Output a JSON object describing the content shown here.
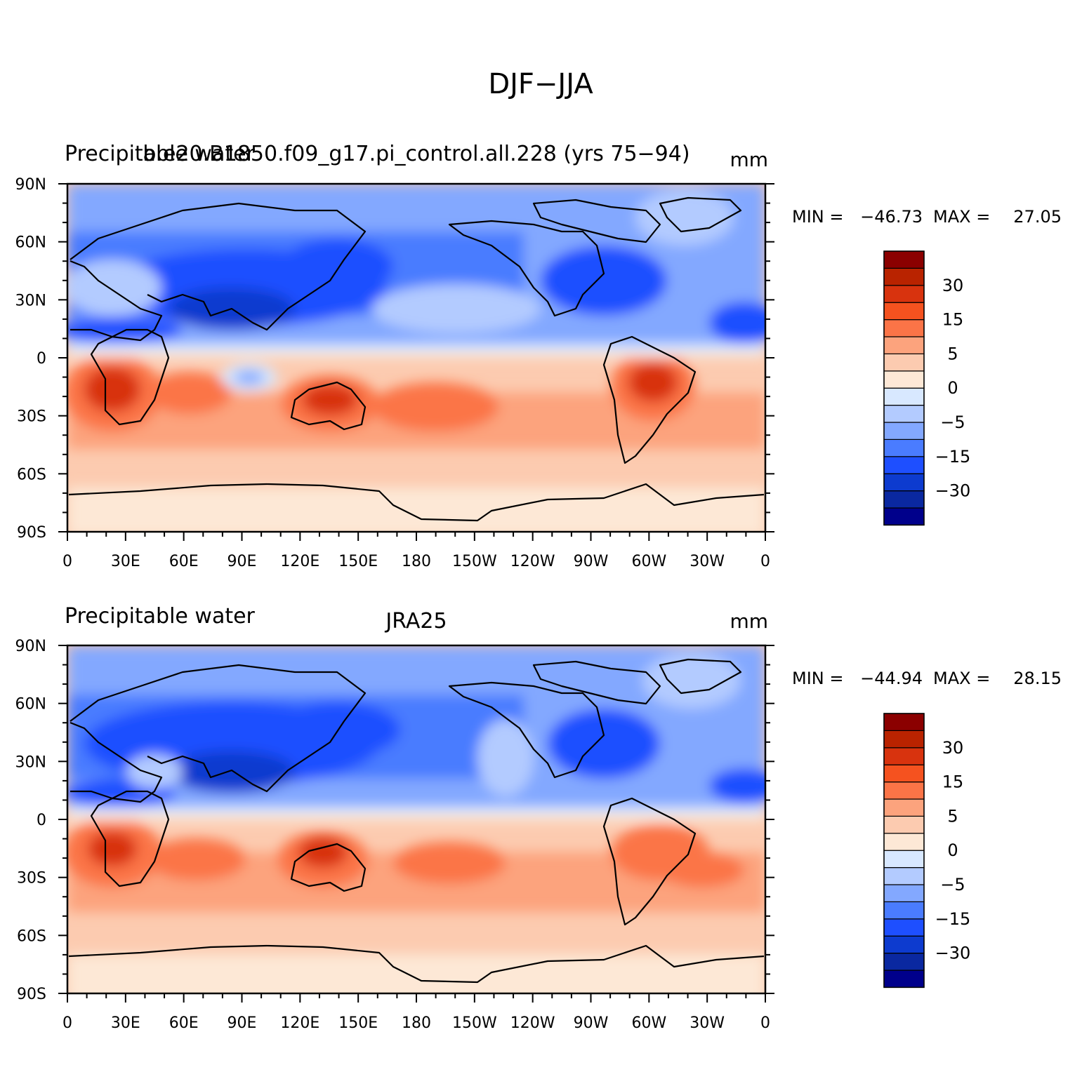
{
  "figure": {
    "title": "DJF−JJA"
  },
  "panels": [
    {
      "id": "top",
      "left_title": "Precipitable water",
      "center_title": "b.e20.B1850.f09_g17.pi_control.all.228 (yrs 75−94)",
      "units": "mm",
      "min_label": "MIN = ",
      "min_value": "−46.73",
      "max_label": "MAX = ",
      "max_value": "27.05"
    },
    {
      "id": "bottom",
      "left_title": "Precipitable water",
      "center_title": "JRA25",
      "units": "mm",
      "min_label": "MIN = ",
      "min_value": "−44.94",
      "max_label": "MAX = ",
      "max_value": "28.15"
    }
  ],
  "axes": {
    "lon_ticks": [
      "0",
      "30E",
      "60E",
      "90E",
      "120E",
      "150E",
      "180",
      "150W",
      "120W",
      "90W",
      "60W",
      "30W",
      "0"
    ],
    "lat_ticks": [
      "90N",
      "60N",
      "30N",
      "0",
      "30S",
      "60S",
      "90S"
    ]
  },
  "colorbar": {
    "colors": [
      "#00008b",
      "#0a28a0",
      "#0d3bcf",
      "#1e4fff",
      "#4a7cff",
      "#83a8ff",
      "#b3cbff",
      "#d8e8ff",
      "#fde8d6",
      "#fccbb0",
      "#fca37d",
      "#fb7447",
      "#f5521f",
      "#d8330e",
      "#b92300",
      "#8b0000"
    ],
    "labels": [
      "30",
      "15",
      "5",
      "0",
      "−5",
      "−15",
      "−30"
    ]
  },
  "chart_data": {
    "type": "heatmap",
    "title": "DJF−JJA",
    "variable": "Precipitable water",
    "units": "mm",
    "x_axis": "longitude 0 → 360 (0, 30E … 180 … 30W, 0)",
    "y_axis": "latitude 90S → 90N",
    "contour_levels": [
      -40,
      -35,
      -30,
      -25,
      -20,
      -15,
      -10,
      -5,
      0,
      5,
      10,
      15,
      20,
      25,
      30,
      35
    ],
    "panels": [
      {
        "name": "b.e20.B1850.f09_g17.pi_control.all.228 (yrs 75−94)",
        "min": -46.73,
        "max": 27.05
      },
      {
        "name": "JRA25",
        "min": -44.94,
        "max": 28.15
      }
    ]
  }
}
